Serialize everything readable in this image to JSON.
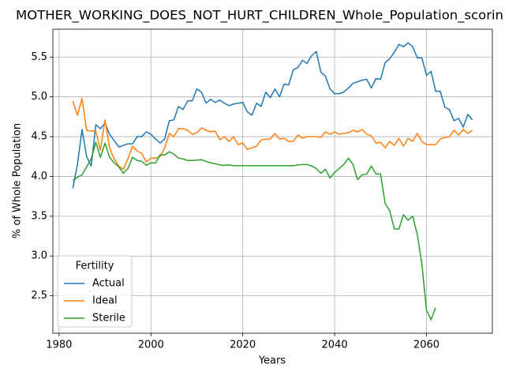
{
  "chart_data": {
    "type": "line",
    "title": "MOTHER_WORKING_DOES_NOT_HURT_CHILDREN_Whole_Population_scorin",
    "x_label": "Years",
    "y_label": "% of Whole Population",
    "legend_title": "Fertility",
    "legend_position": "lower left",
    "grid": true,
    "xlim": [
      1978.65,
      2074.35
    ],
    "ylim": [
      2.03,
      5.85
    ],
    "xticks": [
      1980,
      2000,
      2020,
      2040,
      2060
    ],
    "yticks": [
      2.5,
      {
        "value": 3,
        "label": "3.0"
      },
      3.5,
      {
        "value": 4,
        "label": "4.0"
      },
      4.5,
      {
        "value": 5,
        "label": "5.0"
      },
      5.5
    ],
    "x": [
      1983,
      1984,
      1985,
      1986,
      1987,
      1988,
      1989,
      1990,
      1991,
      1992,
      1993,
      1994,
      1995,
      1996,
      1997,
      1998,
      1999,
      2000,
      2001,
      2002,
      2003,
      2004,
      2005,
      2006,
      2007,
      2008,
      2009,
      2010,
      2011,
      2012,
      2013,
      2014,
      2015,
      2016,
      2017,
      2018,
      2019,
      2020,
      2021,
      2022,
      2023,
      2024,
      2025,
      2026,
      2027,
      2028,
      2029,
      2030,
      2031,
      2032,
      2033,
      2034,
      2035,
      2036,
      2037,
      2038,
      2039,
      2040,
      2041,
      2042,
      2043,
      2044,
      2045,
      2046,
      2047,
      2048,
      2049,
      2050,
      2051,
      2052,
      2053,
      2054,
      2055,
      2056,
      2057,
      2058,
      2059,
      2060,
      2061,
      2062,
      2063,
      2064,
      2065,
      2066,
      2067,
      2068,
      2069,
      2070
    ],
    "series": [
      {
        "name": "Actual",
        "color": "#1f77b4",
        "values": [
          3.85,
          4.15,
          4.59,
          4.25,
          4.13,
          4.65,
          4.6,
          4.67,
          4.53,
          4.45,
          4.37,
          4.39,
          4.41,
          4.41,
          4.5,
          4.5,
          4.56,
          4.53,
          4.47,
          4.42,
          4.47,
          4.7,
          4.71,
          4.88,
          4.84,
          4.95,
          4.95,
          5.1,
          5.06,
          4.92,
          4.97,
          4.93,
          4.96,
          4.92,
          4.89,
          4.91,
          4.92,
          4.93,
          4.81,
          4.77,
          4.92,
          4.88,
          5.06,
          4.99,
          5.1,
          5.0,
          5.16,
          5.15,
          5.34,
          5.37,
          5.46,
          5.42,
          5.52,
          5.57,
          5.31,
          5.26,
          5.1,
          5.04,
          5.04,
          5.06,
          5.11,
          5.17,
          5.19,
          5.21,
          5.22,
          5.11,
          5.23,
          5.22,
          5.43,
          5.48,
          5.56,
          5.66,
          5.63,
          5.68,
          5.63,
          5.49,
          5.49,
          5.27,
          5.32,
          5.07,
          5.07,
          4.87,
          4.84,
          4.7,
          4.73,
          4.62,
          4.78,
          4.71
        ]
      },
      {
        "name": "Ideal",
        "color": "#ff7f0e",
        "values": [
          4.95,
          4.77,
          4.98,
          4.58,
          4.57,
          4.57,
          4.33,
          4.71,
          4.36,
          4.22,
          4.13,
          4.09,
          4.22,
          4.38,
          4.32,
          4.29,
          4.18,
          4.23,
          4.23,
          4.25,
          4.36,
          4.54,
          4.5,
          4.6,
          4.6,
          4.58,
          4.53,
          4.55,
          4.61,
          4.58,
          4.56,
          4.57,
          4.46,
          4.5,
          4.44,
          4.5,
          4.4,
          4.42,
          4.34,
          4.36,
          4.38,
          4.46,
          4.47,
          4.47,
          4.54,
          4.47,
          4.48,
          4.44,
          4.44,
          4.52,
          4.48,
          4.5,
          4.5,
          4.5,
          4.49,
          4.56,
          4.53,
          4.56,
          4.53,
          4.54,
          4.55,
          4.58,
          4.56,
          4.59,
          4.53,
          4.51,
          4.42,
          4.43,
          4.36,
          4.44,
          4.39,
          4.48,
          4.38,
          4.48,
          4.44,
          4.54,
          4.44,
          4.4,
          4.4,
          4.4,
          4.47,
          4.49,
          4.5,
          4.58,
          4.52,
          4.59,
          4.54,
          4.58
        ]
      },
      {
        "name": "Sterile",
        "color": "#2ca02c",
        "values": [
          3.95,
          3.99,
          4.02,
          4.12,
          4.22,
          4.43,
          4.24,
          4.42,
          4.24,
          4.17,
          4.12,
          4.04,
          4.1,
          4.24,
          4.2,
          4.19,
          4.14,
          4.17,
          4.17,
          4.27,
          4.27,
          4.31,
          4.28,
          4.23,
          4.22,
          4.2,
          4.2,
          4.205,
          4.21,
          4.19,
          4.17,
          4.16,
          4.145,
          4.14,
          4.145,
          4.135,
          4.135,
          4.135,
          4.135,
          4.135,
          4.135,
          4.135,
          4.135,
          4.135,
          4.135,
          4.135,
          4.135,
          4.135,
          4.135,
          4.145,
          4.15,
          4.15,
          4.13,
          4.1,
          4.04,
          4.09,
          3.98,
          4.05,
          4.1,
          4.15,
          4.23,
          4.15,
          3.96,
          4.02,
          4.03,
          4.13,
          4.03,
          4.03,
          3.66,
          3.57,
          3.34,
          3.34,
          3.52,
          3.45,
          3.5,
          3.27,
          2.9,
          2.32,
          2.2,
          2.35,
          null,
          null,
          null,
          null,
          null,
          null,
          null,
          null
        ]
      }
    ]
  }
}
